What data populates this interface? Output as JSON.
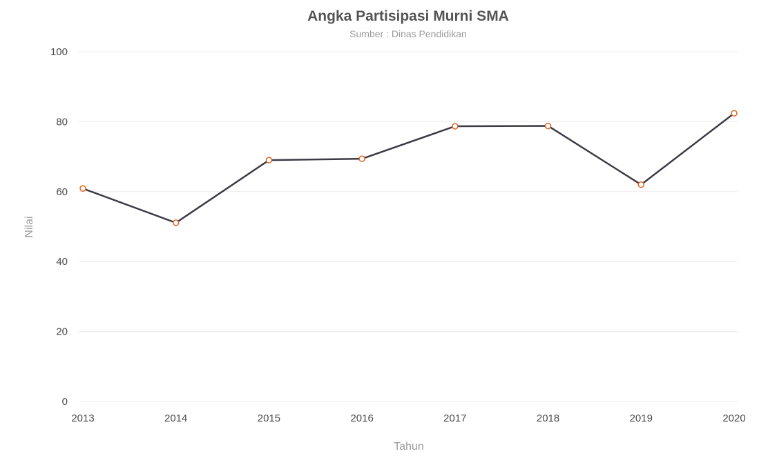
{
  "chart_data": {
    "type": "line",
    "title": "Angka Partisipasi Murni SMA",
    "subtitle": "Sumber : Dinas Pendidikan",
    "xlabel": "Tahun",
    "ylabel": "Nilai",
    "categories": [
      "2013",
      "2014",
      "2015",
      "2016",
      "2017",
      "2018",
      "2019",
      "2020"
    ],
    "series": [
      {
        "values": [
          60.9,
          51.1,
          69.0,
          69.4,
          78.7,
          78.8,
          62.0,
          82.4
        ]
      }
    ],
    "ylim": [
      0,
      100
    ],
    "yticks": [
      0,
      20,
      40,
      60,
      80,
      100
    ],
    "grid": true,
    "legend": "none",
    "colors": {
      "line": "#3d3a45",
      "marker": "#e0621b"
    }
  }
}
